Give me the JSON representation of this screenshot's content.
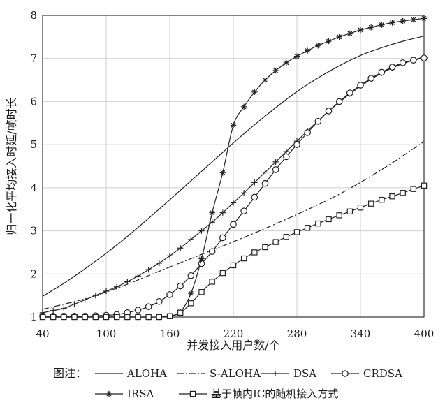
{
  "chart_data": {
    "type": "line",
    "title": "",
    "xlabel": "并发接入用户数/个",
    "ylabel": "归一化平均接入时延/帧时长",
    "xlim": [
      40,
      400
    ],
    "ylim": [
      1,
      8
    ],
    "xticks": [
      40,
      100,
      160,
      220,
      280,
      340,
      400
    ],
    "yticks": [
      1,
      2,
      3,
      4,
      5,
      6,
      7,
      8
    ],
    "grid": true,
    "legend_prefix": "图注：",
    "legend_placement": "bottom",
    "series": [
      {
        "name": "ALOHA",
        "marker": "none",
        "dash": "solid",
        "points": [
          [
            40,
            1.48
          ],
          [
            60,
            1.78
          ],
          [
            80,
            2.12
          ],
          [
            100,
            2.48
          ],
          [
            120,
            2.87
          ],
          [
            140,
            3.29
          ],
          [
            160,
            3.72
          ],
          [
            180,
            4.16
          ],
          [
            200,
            4.6
          ],
          [
            220,
            5.04
          ],
          [
            240,
            5.46
          ],
          [
            260,
            5.86
          ],
          [
            280,
            6.23
          ],
          [
            300,
            6.55
          ],
          [
            320,
            6.83
          ],
          [
            340,
            7.07
          ],
          [
            360,
            7.25
          ],
          [
            380,
            7.4
          ],
          [
            400,
            7.52
          ]
        ]
      },
      {
        "name": "S-ALOHA",
        "marker": "none",
        "dash": "dashdot",
        "points": [
          [
            40,
            1.18
          ],
          [
            80,
            1.42
          ],
          [
            100,
            1.58
          ],
          [
            120,
            1.76
          ],
          [
            160,
            2.16
          ],
          [
            200,
            2.55
          ],
          [
            240,
            2.95
          ],
          [
            280,
            3.38
          ],
          [
            320,
            3.85
          ],
          [
            360,
            4.42
          ],
          [
            400,
            5.07
          ]
        ]
      },
      {
        "name": "DSA",
        "marker": "plus",
        "dash": "solid",
        "points": [
          [
            40,
            1.1
          ],
          [
            50,
            1.15
          ],
          [
            60,
            1.2
          ],
          [
            70,
            1.3
          ],
          [
            80,
            1.4
          ],
          [
            90,
            1.5
          ],
          [
            100,
            1.6
          ],
          [
            110,
            1.7
          ],
          [
            120,
            1.82
          ],
          [
            130,
            1.95
          ],
          [
            140,
            2.1
          ],
          [
            150,
            2.25
          ],
          [
            160,
            2.42
          ],
          [
            170,
            2.6
          ],
          [
            180,
            2.8
          ],
          [
            190,
            3.0
          ],
          [
            200,
            3.2
          ],
          [
            210,
            3.42
          ],
          [
            220,
            3.65
          ],
          [
            230,
            3.88
          ],
          [
            240,
            4.12
          ],
          [
            250,
            4.36
          ],
          [
            260,
            4.6
          ],
          [
            270,
            4.84
          ],
          [
            280,
            5.08
          ],
          [
            290,
            5.32
          ],
          [
            300,
            5.55
          ],
          [
            310,
            5.78
          ],
          [
            320,
            5.98
          ],
          [
            330,
            6.18
          ],
          [
            340,
            6.35
          ],
          [
            350,
            6.52
          ],
          [
            360,
            6.66
          ],
          [
            370,
            6.78
          ],
          [
            380,
            6.88
          ],
          [
            390,
            6.96
          ],
          [
            400,
            7.04
          ]
        ]
      },
      {
        "name": "CRDSA",
        "marker": "circle",
        "dash": "solid",
        "points": [
          [
            40,
            1.02
          ],
          [
            50,
            1.02
          ],
          [
            60,
            1.02
          ],
          [
            70,
            1.02
          ],
          [
            80,
            1.02
          ],
          [
            90,
            1.03
          ],
          [
            100,
            1.04
          ],
          [
            110,
            1.06
          ],
          [
            120,
            1.1
          ],
          [
            130,
            1.16
          ],
          [
            140,
            1.24
          ],
          [
            150,
            1.36
          ],
          [
            160,
            1.52
          ],
          [
            170,
            1.72
          ],
          [
            180,
            1.96
          ],
          [
            190,
            2.24
          ],
          [
            200,
            2.52
          ],
          [
            210,
            2.84
          ],
          [
            220,
            3.15
          ],
          [
            230,
            3.46
          ],
          [
            240,
            3.78
          ],
          [
            250,
            4.1
          ],
          [
            260,
            4.42
          ],
          [
            270,
            4.72
          ],
          [
            280,
            5.0
          ],
          [
            290,
            5.28
          ],
          [
            300,
            5.54
          ],
          [
            310,
            5.78
          ],
          [
            320,
            6.0
          ],
          [
            330,
            6.2
          ],
          [
            340,
            6.38
          ],
          [
            350,
            6.54
          ],
          [
            360,
            6.68
          ],
          [
            370,
            6.8
          ],
          [
            380,
            6.9
          ],
          [
            390,
            6.96
          ],
          [
            400,
            7.01
          ]
        ]
      },
      {
        "name": "IRSA",
        "marker": "asterisk",
        "dash": "solid",
        "points": [
          [
            40,
            1.0
          ],
          [
            50,
            1.0
          ],
          [
            60,
            1.0
          ],
          [
            70,
            1.0
          ],
          [
            80,
            1.0
          ],
          [
            90,
            1.0
          ],
          [
            100,
            1.0
          ],
          [
            110,
            1.0
          ],
          [
            120,
            1.0
          ],
          [
            130,
            1.0
          ],
          [
            140,
            1.0
          ],
          [
            150,
            1.0
          ],
          [
            160,
            1.02
          ],
          [
            170,
            1.12
          ],
          [
            180,
            1.55
          ],
          [
            190,
            2.35
          ],
          [
            200,
            3.42
          ],
          [
            210,
            4.35
          ],
          [
            220,
            5.45
          ],
          [
            230,
            5.88
          ],
          [
            240,
            6.22
          ],
          [
            250,
            6.5
          ],
          [
            260,
            6.72
          ],
          [
            270,
            6.9
          ],
          [
            280,
            7.05
          ],
          [
            290,
            7.18
          ],
          [
            300,
            7.3
          ],
          [
            310,
            7.4
          ],
          [
            320,
            7.5
          ],
          [
            330,
            7.58
          ],
          [
            340,
            7.66
          ],
          [
            350,
            7.72
          ],
          [
            360,
            7.78
          ],
          [
            370,
            7.83
          ],
          [
            380,
            7.87
          ],
          [
            390,
            7.9
          ],
          [
            400,
            7.93
          ]
        ]
      },
      {
        "name": "基于帧内IC的随机接入方式",
        "marker": "square",
        "dash": "solid",
        "points": [
          [
            40,
            1.0
          ],
          [
            50,
            1.0
          ],
          [
            60,
            1.0
          ],
          [
            70,
            1.0
          ],
          [
            80,
            1.0
          ],
          [
            90,
            1.0
          ],
          [
            100,
            1.0
          ],
          [
            110,
            1.0
          ],
          [
            120,
            1.0
          ],
          [
            130,
            1.0
          ],
          [
            140,
            1.0
          ],
          [
            150,
            1.0
          ],
          [
            160,
            1.02
          ],
          [
            170,
            1.1
          ],
          [
            180,
            1.32
          ],
          [
            190,
            1.58
          ],
          [
            200,
            1.82
          ],
          [
            210,
            2.02
          ],
          [
            220,
            2.2
          ],
          [
            230,
            2.36
          ],
          [
            240,
            2.5
          ],
          [
            250,
            2.62
          ],
          [
            260,
            2.74
          ],
          [
            270,
            2.86
          ],
          [
            280,
            2.97
          ],
          [
            290,
            3.07
          ],
          [
            300,
            3.17
          ],
          [
            310,
            3.27
          ],
          [
            320,
            3.36
          ],
          [
            330,
            3.45
          ],
          [
            340,
            3.54
          ],
          [
            350,
            3.63
          ],
          [
            360,
            3.72
          ],
          [
            370,
            3.8
          ],
          [
            380,
            3.88
          ],
          [
            390,
            3.97
          ],
          [
            400,
            4.05
          ]
        ]
      }
    ]
  }
}
